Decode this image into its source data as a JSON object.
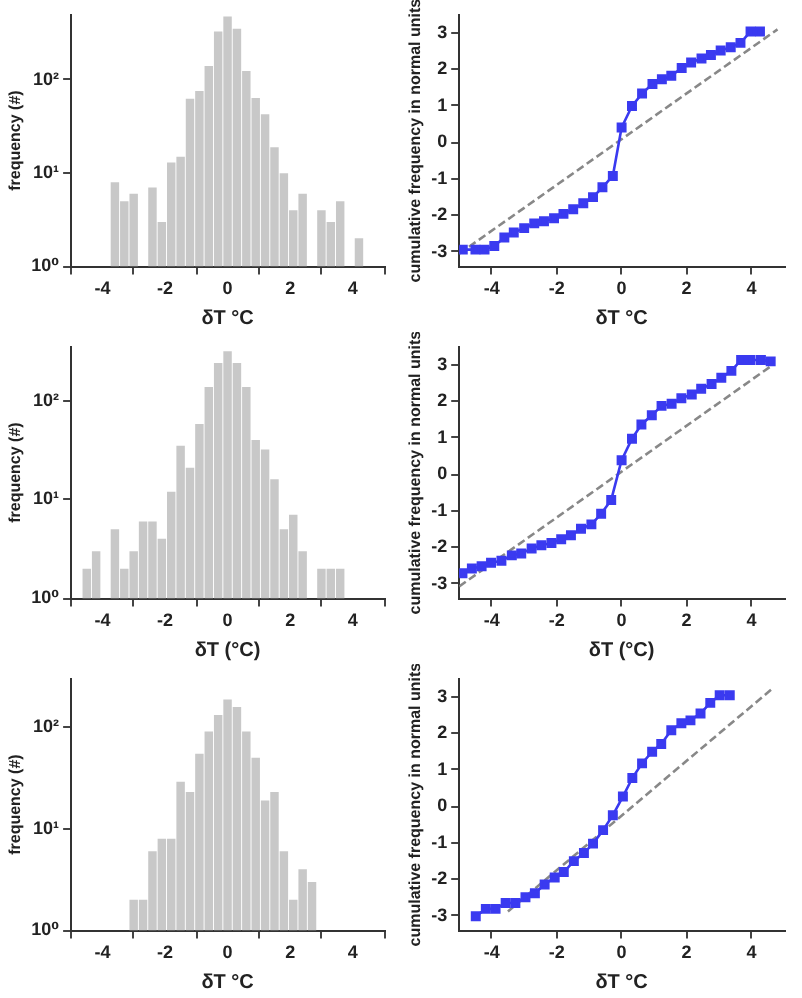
{
  "chart_data": [
    {
      "type": "histogram",
      "xlabel": "δT °C",
      "ylabel": "frequency (#)",
      "log": "y",
      "color": "#c8c8c8",
      "xlim": [
        -5,
        5
      ],
      "xticks": [
        -4,
        -2,
        0,
        2,
        4
      ],
      "ylim": [
        1,
        500
      ],
      "yticks": [
        {
          "value": 1,
          "label": "10⁰"
        },
        {
          "value": 10,
          "label": "10¹"
        },
        {
          "value": 100,
          "label": "10²"
        }
      ],
      "bins": [
        -3.75,
        -3.45,
        -3.15,
        -2.85,
        -2.55,
        -2.25,
        -1.95,
        -1.65,
        -1.35,
        -1.05,
        -0.75,
        -0.45,
        -0.15,
        0.15,
        0.45,
        0.75,
        1.05,
        1.35,
        1.65,
        1.95,
        2.25,
        2.55,
        2.85,
        3.15,
        3.45,
        3.75,
        4.05,
        4.35
      ],
      "values": [
        8,
        5,
        6,
        null,
        7,
        3,
        13,
        15,
        63,
        76,
        141,
        330,
        480,
        355,
        125,
        64,
        43,
        19,
        10,
        4,
        6,
        null,
        4,
        3,
        5,
        null,
        2
      ]
    },
    {
      "type": "line",
      "xlabel": "δT °C",
      "ylabel": "cumulative frequency in normal units",
      "xlim": [
        -5,
        5
      ],
      "xticks": [
        -4,
        -2,
        0,
        2,
        4
      ],
      "ylim": [
        -3.4,
        3.5
      ],
      "yticks": [
        -3,
        -2,
        -1,
        0,
        1,
        2,
        3
      ],
      "series": [
        {
          "color": "#3a3af0",
          "marker": "square",
          "x": [
            -4.89,
            -4.5,
            -4.22,
            -3.92,
            -3.61,
            -3.32,
            -3.0,
            -2.69,
            -2.39,
            -2.08,
            -1.79,
            -1.49,
            -1.18,
            -0.88,
            -0.59,
            -0.27,
            0,
            0.32,
            0.63,
            0.95,
            1.24,
            1.53,
            1.85,
            2.14,
            2.46,
            2.75,
            3.05,
            3.36,
            3.66,
            3.97,
            4.26
          ],
          "values": [
            -2.94,
            -2.94,
            -2.94,
            -2.84,
            -2.61,
            -2.47,
            -2.35,
            -2.22,
            -2.16,
            -2.08,
            -1.96,
            -1.83,
            -1.67,
            -1.5,
            -1.23,
            -0.92,
            0.41,
            1.0,
            1.34,
            1.6,
            1.73,
            1.83,
            2.04,
            2.19,
            2.3,
            2.4,
            2.52,
            2.61,
            2.73,
            3.04,
            3.04
          ]
        },
        {
          "color": "#888888",
          "marker": "none",
          "line_style": "dashed",
          "x": [
            -5,
            4.8
          ],
          "values": [
            -3.05,
            3.1
          ]
        }
      ]
    },
    {
      "type": "histogram",
      "xlabel": "δT (°C)",
      "ylabel": "frequency (#)",
      "log": "y",
      "color": "#c8c8c8",
      "xlim": [
        -5,
        5
      ],
      "xticks": [
        -4,
        -2,
        0,
        2,
        4
      ],
      "ylim": [
        1,
        350
      ],
      "yticks": [
        {
          "value": 1,
          "label": "10⁰"
        },
        {
          "value": 10,
          "label": "10¹"
        },
        {
          "value": 100,
          "label": "10²"
        }
      ],
      "bins": [
        -4.65,
        -4.35,
        -4.05,
        -3.75,
        -3.45,
        -3.15,
        -2.85,
        -2.55,
        -2.25,
        -1.95,
        -1.65,
        -1.35,
        -1.05,
        -0.75,
        -0.45,
        -0.15,
        0.15,
        0.45,
        0.75,
        1.05,
        1.35,
        1.65,
        1.95,
        2.25,
        2.55,
        2.85,
        3.15,
        3.45,
        3.75
      ],
      "values": [
        2,
        3,
        null,
        5,
        2,
        3,
        6,
        6,
        4,
        12,
        35,
        21,
        58,
        137,
        240,
        316,
        240,
        137,
        40,
        32,
        16,
        5,
        7,
        3,
        null,
        2,
        2,
        2
      ]
    },
    {
      "type": "line",
      "xlabel": "δT (°C)",
      "ylabel": "cumulative frequency in normal units",
      "xlim": [
        -5,
        5
      ],
      "xticks": [
        -4,
        -2,
        0,
        2,
        4
      ],
      "ylim": [
        -3.4,
        3.5
      ],
      "yticks": [
        -3,
        -2,
        -1,
        0,
        1,
        2,
        3
      ],
      "series": [
        {
          "color": "#3a3af0",
          "marker": "square",
          "x": [
            -4.9,
            -4.61,
            -4.31,
            -4.02,
            -3.7,
            -3.38,
            -3.09,
            -2.77,
            -2.47,
            -2.16,
            -1.86,
            -1.56,
            -1.25,
            -0.93,
            -0.63,
            -0.32,
            0,
            0.32,
            0.61,
            0.93,
            1.23,
            1.54,
            1.84,
            2.16,
            2.45,
            2.77,
            3.07,
            3.38,
            3.68,
            3.97,
            4.29,
            4.59
          ],
          "values": [
            -2.71,
            -2.58,
            -2.52,
            -2.42,
            -2.37,
            -2.22,
            -2.17,
            -2.03,
            -1.94,
            -1.88,
            -1.78,
            -1.67,
            -1.49,
            -1.37,
            -1.08,
            -0.7,
            0.39,
            0.98,
            1.37,
            1.62,
            1.88,
            1.94,
            2.09,
            2.19,
            2.35,
            2.48,
            2.65,
            2.84,
            3.14,
            3.14,
            3.14,
            3.1
          ]
        },
        {
          "color": "#888888",
          "marker": "none",
          "line_style": "dashed",
          "x": [
            -5,
            4.6
          ],
          "values": [
            -3.07,
            2.97
          ]
        }
      ]
    },
    {
      "type": "histogram",
      "xlabel": "δT °C",
      "ylabel": "frequency (#)",
      "log": "y",
      "color": "#c8c8c8",
      "xlim": [
        -5,
        5
      ],
      "xticks": [
        -4,
        -2,
        0,
        2,
        4
      ],
      "ylim": [
        1,
        300
      ],
      "yticks": [
        {
          "value": 1,
          "label": "10⁰"
        },
        {
          "value": 10,
          "label": "10¹"
        },
        {
          "value": 100,
          "label": "10²"
        }
      ],
      "bins": [
        -3.15,
        -2.85,
        -2.55,
        -2.25,
        -1.95,
        -1.65,
        -1.35,
        -1.05,
        -0.75,
        -0.45,
        -0.15,
        0.15,
        0.45,
        0.75,
        1.05,
        1.35,
        1.65,
        1.95,
        2.25,
        2.55,
        2.85
      ],
      "values": [
        2,
        2,
        6,
        8,
        8,
        29,
        23,
        55,
        91,
        132,
        188,
        158,
        91,
        50,
        19,
        23,
        6,
        2,
        4,
        3
      ]
    },
    {
      "type": "line",
      "xlabel": "δT °C",
      "ylabel": "cumulative frequency in normal units",
      "xlim": [
        -5,
        5
      ],
      "xticks": [
        -4,
        -2,
        0,
        2,
        4
      ],
      "ylim": [
        -3.4,
        3.5
      ],
      "yticks": [
        -3,
        -2,
        -1,
        0,
        1,
        2,
        3
      ],
      "series": [
        {
          "color": "#3a3af0",
          "marker": "square",
          "x": [
            -4.49,
            -4.18,
            -3.88,
            -3.57,
            -3.27,
            -2.96,
            -2.67,
            -2.37,
            -2.06,
            -1.78,
            -1.47,
            -1.16,
            -0.88,
            -0.57,
            -0.27,
            0.04,
            0.33,
            0.63,
            0.94,
            1.22,
            1.53,
            1.84,
            2.12,
            2.43,
            2.73,
            3.02,
            3.33
          ],
          "values": [
            -3.01,
            -2.81,
            -2.81,
            -2.65,
            -2.65,
            -2.49,
            -2.38,
            -2.14,
            -1.95,
            -1.8,
            -1.5,
            -1.28,
            -1.02,
            -0.65,
            -0.24,
            0.27,
            0.78,
            1.18,
            1.5,
            1.71,
            2.09,
            2.28,
            2.36,
            2.55,
            2.84,
            3.05,
            3.05
          ]
        },
        {
          "color": "#888888",
          "marker": "none",
          "line_style": "dashed",
          "x": [
            -3.5,
            4.6
          ],
          "values": [
            -2.88,
            3.2
          ]
        }
      ]
    }
  ]
}
